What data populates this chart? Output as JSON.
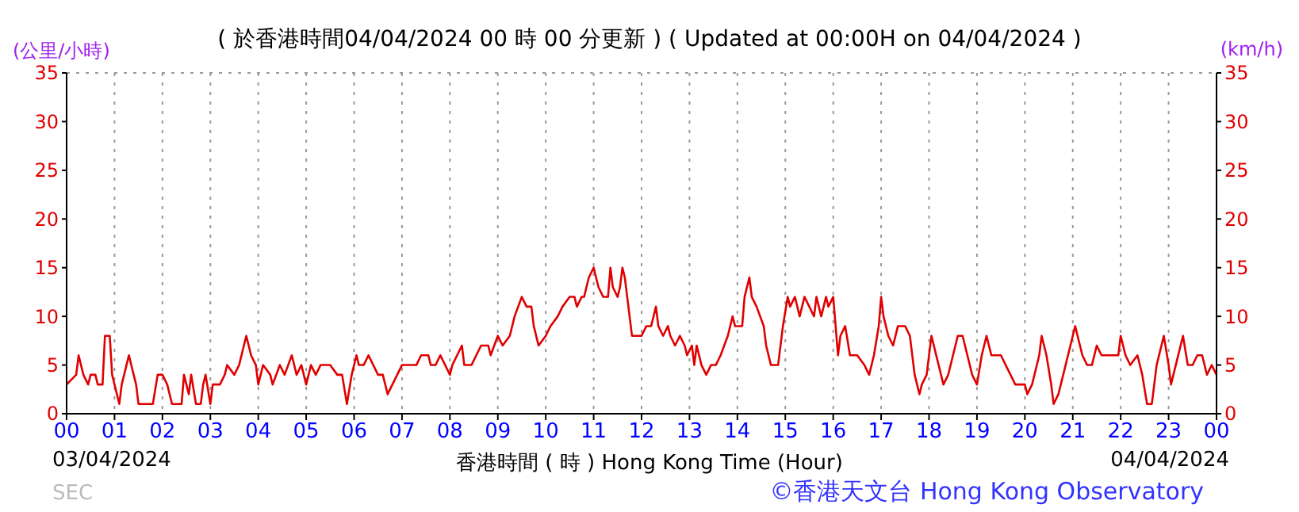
{
  "chart_data": {
    "type": "line",
    "title": "( 於香港時間04/04/2024 00 時 00 分更新 ) ( Updated at 00:00H on 04/04/2024 )",
    "xlabel": "香港時間 ( 時 )  Hong Kong Time (Hour)",
    "ylabel": "(公里/小時)",
    "y2label": "(km/h)",
    "annotations": [
      "03/04/2024",
      "04/04/2024",
      "SEC",
      "©香港天文台 Hong Kong Observatory"
    ],
    "series": [
      {
        "color": "#e00000",
        "x": [
          0,
          0.2,
          0.25,
          0.35,
          0.45,
          0.5,
          0.6,
          0.65,
          0.75,
          0.8,
          0.9,
          0.95,
          1,
          1.1,
          1.15,
          1.25,
          1.3,
          1.4,
          1.45,
          1.5,
          1.8,
          1.9,
          2,
          2.1,
          2.2,
          2.4,
          2.45,
          2.55,
          2.6,
          2.7,
          2.8,
          2.85,
          2.9,
          3,
          3.05,
          3.2,
          3.3,
          3.35,
          3.5,
          3.6,
          3.75,
          3.85,
          3.95,
          4,
          4.1,
          4.25,
          4.3,
          4.45,
          4.55,
          4.7,
          4.8,
          4.9,
          5,
          5.1,
          5.2,
          5.3,
          5.5,
          5.65,
          5.75,
          5.85,
          5.95,
          6.05,
          6.1,
          6.2,
          6.3,
          6.4,
          6.5,
          6.6,
          6.7,
          6.8,
          6.9,
          7,
          7.3,
          7.4,
          7.55,
          7.6,
          7.7,
          7.8,
          8,
          8.05,
          8.15,
          8.25,
          8.3,
          8.45,
          8.55,
          8.65,
          8.8,
          8.85,
          9,
          9.1,
          9.25,
          9.35,
          9.5,
          9.6,
          9.7,
          9.75,
          9.85,
          10,
          10.1,
          10.25,
          10.35,
          10.5,
          10.6,
          10.65,
          10.75,
          10.8,
          10.9,
          11,
          11.05,
          11.1,
          11.2,
          11.3,
          11.35,
          11.4,
          11.5,
          11.55,
          11.6,
          11.65,
          11.7,
          11.75,
          11.8,
          11.9,
          12,
          12.1,
          12.2,
          12.3,
          12.35,
          12.45,
          12.55,
          12.6,
          12.7,
          12.8,
          12.9,
          12.95,
          13.05,
          13.1,
          13.15,
          13.25,
          13.35,
          13.45,
          13.55,
          13.65,
          13.8,
          13.9,
          13.95,
          14.1,
          14.15,
          14.25,
          14.3,
          14.4,
          14.55,
          14.6,
          14.7,
          14.85,
          14.95,
          15.05,
          15.1,
          15.2,
          15.3,
          15.4,
          15.5,
          15.6,
          15.65,
          15.75,
          15.85,
          15.9,
          16,
          16.05,
          16.1,
          16.15,
          16.25,
          16.35,
          16.5,
          16.65,
          16.75,
          16.85,
          16.95,
          17,
          17.05,
          17.15,
          17.25,
          17.35,
          17.5,
          17.6,
          17.7,
          17.8,
          17.85,
          17.95,
          18.05,
          18.1,
          18.2,
          18.3,
          18.4,
          18.5,
          18.6,
          18.7,
          18.8,
          18.9,
          19,
          19.1,
          19.2,
          19.3,
          19.5,
          19.6,
          19.7,
          19.8,
          20,
          20.05,
          20.15,
          20.3,
          20.35,
          20.45,
          20.55,
          20.6,
          20.7,
          20.85,
          20.95,
          21.05,
          21.1,
          21.2,
          21.3,
          21.4,
          21.5,
          21.6,
          21.95,
          22,
          22.1,
          22.2,
          22.35,
          22.45,
          22.55,
          22.65,
          22.75,
          22.9,
          23,
          23.05,
          23.15,
          23.3,
          23.4,
          23.5,
          23.6,
          23.7,
          23.8,
          23.9,
          24
        ],
        "values": [
          3,
          4,
          6,
          4,
          3,
          4,
          4,
          3,
          3,
          8,
          8,
          4,
          3,
          1,
          3,
          5,
          6,
          4,
          3,
          1,
          1,
          4,
          4,
          3,
          1,
          1,
          4,
          2,
          4,
          1,
          1,
          3,
          4,
          1,
          3,
          3,
          4,
          5,
          4,
          5,
          8,
          6,
          5,
          3,
          5,
          4,
          3,
          5,
          4,
          6,
          4,
          5,
          3,
          5,
          4,
          5,
          5,
          4,
          4,
          1,
          4,
          6,
          5,
          5,
          6,
          5,
          4,
          4,
          2,
          3,
          4,
          5,
          5,
          6,
          6,
          5,
          5,
          6,
          4,
          5,
          6,
          7,
          5,
          5,
          6,
          7,
          7,
          6,
          8,
          7,
          8,
          10,
          12,
          11,
          11,
          9,
          7,
          8,
          9,
          10,
          11,
          12,
          12,
          11,
          12,
          12,
          14,
          15,
          14,
          13,
          12,
          12,
          15,
          13,
          12,
          13,
          15,
          14,
          12,
          10,
          8,
          8,
          8,
          9,
          9,
          11,
          9,
          8,
          9,
          8,
          7,
          8,
          7,
          6,
          7,
          5,
          7,
          5,
          4,
          5,
          5,
          6,
          8,
          10,
          9,
          9,
          12,
          14,
          12,
          11,
          9,
          7,
          5,
          5,
          9,
          12,
          11,
          12,
          10,
          12,
          11,
          10,
          12,
          10,
          12,
          11,
          12,
          9,
          6,
          8,
          9,
          6,
          6,
          5,
          4,
          6,
          9,
          12,
          10,
          8,
          7,
          9,
          9,
          8,
          4,
          2,
          3,
          4,
          8,
          7,
          5,
          3,
          4,
          6,
          8,
          8,
          6,
          4,
          3,
          6,
          8,
          6,
          6,
          5,
          4,
          3,
          3,
          2,
          3,
          6,
          8,
          6,
          3,
          1,
          2,
          5,
          7,
          9,
          8,
          6,
          5,
          5,
          7,
          6,
          6,
          8,
          6,
          5,
          6,
          4,
          1,
          1,
          5,
          8,
          5,
          3,
          5,
          8,
          5,
          5,
          6,
          6,
          4,
          5,
          4
        ]
      }
    ],
    "xlim": [
      0,
      24
    ],
    "xticks": [
      {
        "value": 0,
        "label": "00"
      },
      {
        "value": 1,
        "label": "01"
      },
      {
        "value": 2,
        "label": "02"
      },
      {
        "value": 3,
        "label": "03"
      },
      {
        "value": 4,
        "label": "04"
      },
      {
        "value": 5,
        "label": "05"
      },
      {
        "value": 6,
        "label": "06"
      },
      {
        "value": 7,
        "label": "07"
      },
      {
        "value": 8,
        "label": "08"
      },
      {
        "value": 9,
        "label": "09"
      },
      {
        "value": 10,
        "label": "10"
      },
      {
        "value": 11,
        "label": "11"
      },
      {
        "value": 12,
        "label": "12"
      },
      {
        "value": 13,
        "label": "13"
      },
      {
        "value": 14,
        "label": "14"
      },
      {
        "value": 15,
        "label": "15"
      },
      {
        "value": 16,
        "label": "16"
      },
      {
        "value": 17,
        "label": "17"
      },
      {
        "value": 18,
        "label": "18"
      },
      {
        "value": 19,
        "label": "19"
      },
      {
        "value": 20,
        "label": "20"
      },
      {
        "value": 21,
        "label": "21"
      },
      {
        "value": 22,
        "label": "22"
      },
      {
        "value": 23,
        "label": "23"
      },
      {
        "value": 24,
        "label": "00"
      }
    ],
    "ylim": [
      0,
      35
    ],
    "yticks": [
      0,
      5,
      10,
      15,
      20,
      25,
      30,
      35
    ],
    "y2lim": [
      0,
      35
    ],
    "y2ticks": [
      0,
      5,
      10,
      15,
      20,
      25,
      30,
      35
    ],
    "grid": true,
    "marker": "none",
    "line_style": "solid"
  }
}
